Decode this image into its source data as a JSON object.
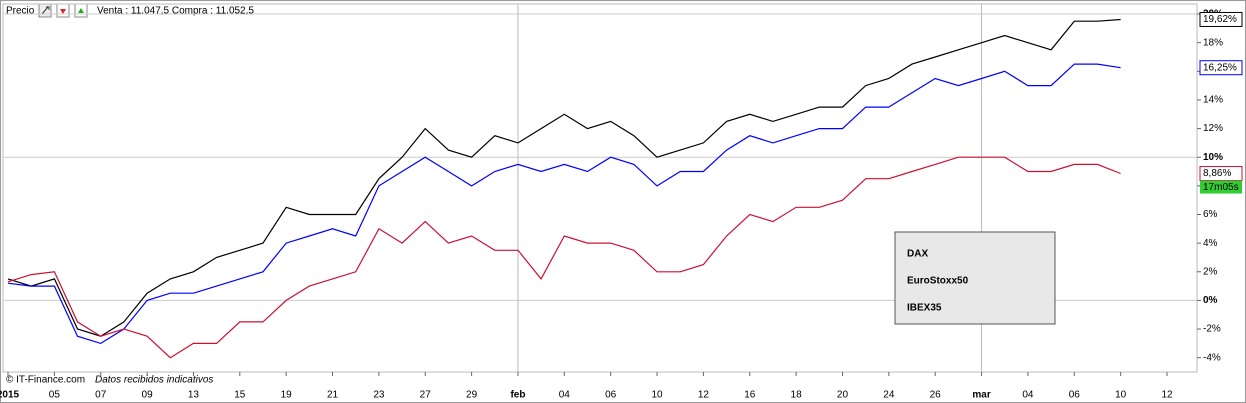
{
  "chart_data": {
    "type": "line",
    "header_label": "Precio",
    "quote": "Venta : 11.047,5 Compra : 11.052,5",
    "source": "© IT-Finance.com",
    "source_note": "Datos recibidos indicativos",
    "timer": "17m05s",
    "categories": [
      "2015",
      null,
      "05",
      null,
      "07",
      null,
      "09",
      null,
      "13",
      null,
      "15",
      null,
      "19",
      null,
      "21",
      null,
      "23",
      null,
      "27",
      null,
      "29",
      null,
      "feb",
      null,
      "04",
      null,
      "06",
      null,
      "10",
      null,
      "12",
      null,
      "16",
      null,
      "18",
      null,
      "20",
      null,
      "24",
      null,
      "26",
      null,
      "mar",
      null,
      "04",
      null,
      "06",
      null,
      "10",
      null,
      "12",
      null
    ],
    "series": [
      {
        "name": "DAX",
        "color": "#000000",
        "values": [
          1.5,
          1.0,
          1.5,
          -2.0,
          -2.5,
          -1.5,
          0.5,
          1.5,
          2.0,
          3.0,
          3.5,
          4.0,
          6.5,
          6.0,
          6.0,
          6.0,
          8.5,
          10.0,
          12.0,
          10.5,
          10.0,
          11.5,
          11.0,
          12.0,
          13.0,
          12.0,
          12.5,
          11.5,
          10.0,
          10.5,
          11.0,
          12.5,
          13.0,
          12.5,
          13.0,
          13.5,
          13.5,
          15.0,
          15.5,
          16.5,
          17.0,
          17.5,
          18.0,
          18.5,
          18.0,
          17.5,
          19.5,
          19.5,
          19.62,
          null,
          null,
          null
        ],
        "value_labels": [
          null,
          null,
          null,
          null,
          null,
          null,
          null,
          null,
          null,
          null,
          null,
          null,
          null,
          null,
          null,
          null,
          null,
          null,
          null,
          null,
          null,
          null,
          null,
          null,
          null,
          null,
          null,
          null,
          null,
          null,
          null,
          null,
          null,
          null,
          null,
          null,
          null,
          null,
          null,
          null,
          null,
          null,
          null,
          null,
          null,
          null,
          null,
          null,
          "19,62%",
          null,
          null,
          null
        ]
      },
      {
        "name": "EuroStoxx50",
        "color": "#0000ff",
        "values": [
          1.2,
          1.0,
          1.0,
          -2.5,
          -3.0,
          -2.0,
          0.0,
          0.5,
          0.5,
          1.0,
          1.5,
          2.0,
          4.0,
          4.5,
          5.0,
          4.5,
          8.0,
          9.0,
          10.0,
          9.0,
          8.0,
          9.0,
          9.5,
          9.0,
          9.5,
          9.0,
          10.0,
          9.5,
          8.0,
          9.0,
          9.0,
          10.5,
          11.5,
          11.0,
          11.5,
          12.0,
          12.0,
          13.5,
          13.5,
          14.5,
          15.5,
          15.0,
          15.5,
          16.0,
          15.0,
          15.0,
          16.5,
          16.5,
          16.25,
          null,
          null,
          null
        ],
        "value_labels": [
          null,
          null,
          null,
          null,
          null,
          null,
          null,
          null,
          null,
          null,
          null,
          null,
          null,
          null,
          null,
          null,
          null,
          null,
          null,
          null,
          null,
          null,
          null,
          null,
          null,
          null,
          null,
          null,
          null,
          null,
          null,
          null,
          null,
          null,
          null,
          null,
          null,
          null,
          null,
          null,
          null,
          null,
          null,
          null,
          null,
          null,
          null,
          null,
          "16,25%",
          null,
          null,
          null
        ]
      },
      {
        "name": "IBEX35",
        "color": "#cc1133",
        "values": [
          1.3,
          1.8,
          2.0,
          -1.5,
          -2.5,
          -2.0,
          -2.5,
          -4.0,
          -3.0,
          -3.0,
          -1.5,
          -1.5,
          0.0,
          1.0,
          1.5,
          2.0,
          5.0,
          4.0,
          5.5,
          4.0,
          4.5,
          3.5,
          3.5,
          1.5,
          4.5,
          4.0,
          4.0,
          3.5,
          2.0,
          2.0,
          2.5,
          4.5,
          6.0,
          5.5,
          6.5,
          6.5,
          7.0,
          8.5,
          8.5,
          9.0,
          9.5,
          10.0,
          10.0,
          10.0,
          9.0,
          9.0,
          9.5,
          9.5,
          8.86,
          null,
          null,
          null
        ],
        "value_labels": [
          null,
          null,
          null,
          null,
          null,
          null,
          null,
          null,
          null,
          null,
          null,
          null,
          null,
          null,
          null,
          null,
          null,
          null,
          null,
          null,
          null,
          null,
          null,
          null,
          null,
          null,
          null,
          null,
          null,
          null,
          null,
          null,
          null,
          null,
          null,
          null,
          null,
          null,
          null,
          null,
          null,
          null,
          null,
          null,
          null,
          null,
          null,
          null,
          "8,86%",
          null,
          null,
          null
        ]
      }
    ],
    "ylim": [
      -5,
      20.7
    ],
    "yticks": [
      {
        "value": -4,
        "label": "-4%"
      },
      {
        "value": -2,
        "label": "-2%"
      },
      {
        "value": 0,
        "label": "0%"
      },
      {
        "value": 2,
        "label": "2%"
      },
      {
        "value": 4,
        "label": "4%"
      },
      {
        "value": 6,
        "label": "6%"
      },
      {
        "value": 8,
        "label": "8%"
      },
      {
        "value": 10,
        "label": "10%"
      },
      {
        "value": 12,
        "label": "12%"
      },
      {
        "value": 14,
        "label": "14%"
      },
      {
        "value": 16,
        "label": "16%"
      },
      {
        "value": 18,
        "label": "18%"
      },
      {
        "value": 20,
        "label": "20%"
      }
    ],
    "legend": "bottom-right"
  }
}
